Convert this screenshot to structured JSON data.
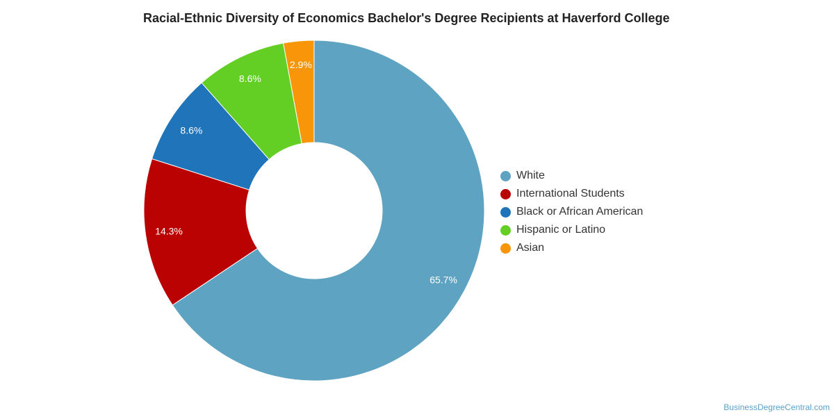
{
  "chart_data": {
    "type": "pie",
    "title": "Racial-Ethnic Diversity of Economics Bachelor's Degree Recipients at Haverford College",
    "categories": [
      "White",
      "International Students",
      "Black or African American",
      "Hispanic or Latino",
      "Asian"
    ],
    "values": [
      65.7,
      14.3,
      8.6,
      8.6,
      2.9
    ],
    "labels": [
      "65.7%",
      "14.3%",
      "8.6%",
      "8.6%",
      "2.9%"
    ],
    "colors": [
      "#5ea3c1",
      "#bb0202",
      "#1f74ba",
      "#63cf24",
      "#f89508"
    ],
    "donut": true,
    "legend_position": "right"
  },
  "credit": "BusinessDegreeCentral.com"
}
